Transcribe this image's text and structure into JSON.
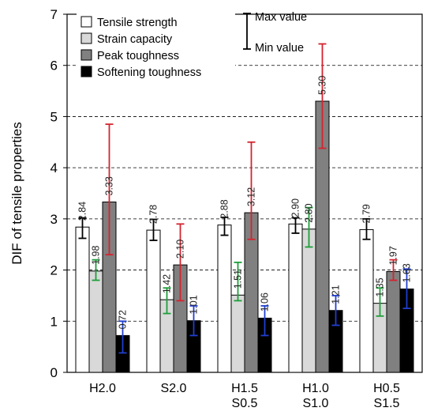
{
  "chart_data": {
    "type": "bar",
    "title": "",
    "xlabel": "",
    "ylabel": "DIF of tensile properties",
    "ylim": [
      0,
      7
    ],
    "yticks": [
      "0",
      "1",
      "2",
      "3",
      "4",
      "5",
      "6",
      "7"
    ],
    "grid": "dashed horizontal",
    "legend_position": "top-left",
    "categories": [
      [
        "H2.0"
      ],
      [
        "S2.0"
      ],
      [
        "H1.5",
        "S0.5"
      ],
      [
        "H1.0",
        "S1.0"
      ],
      [
        "H0.5",
        "S1.5"
      ]
    ],
    "series": [
      {
        "name": "Tensile strength",
        "fill": "#ffffff",
        "error_color": "#000000",
        "values": [
          2.84,
          2.78,
          2.88,
          2.9,
          2.79
        ],
        "labels": [
          "2.84",
          "2.78",
          "2.88",
          "2.90",
          "2.79"
        ],
        "err_min": [
          2.62,
          2.58,
          2.68,
          2.72,
          2.6
        ],
        "err_max": [
          3.02,
          2.99,
          3.03,
          3.02,
          3.0
        ]
      },
      {
        "name": "Strain capacity",
        "fill": "#d9d9d9",
        "error_color": "#1e9e3a",
        "values": [
          1.98,
          1.42,
          1.51,
          2.8,
          1.35
        ],
        "labels": [
          "1.98",
          "1.42",
          "1.51",
          "2.80",
          "1.35"
        ],
        "err_min": [
          1.8,
          1.15,
          1.4,
          2.45,
          1.1
        ],
        "err_max": [
          2.2,
          1.65,
          2.15,
          3.22,
          1.65
        ]
      },
      {
        "name": "Peak toughness",
        "fill": "#808080",
        "error_color": "#d4242f",
        "values": [
          3.33,
          2.1,
          3.12,
          5.3,
          1.97
        ],
        "labels": [
          "3.33",
          "2.10",
          "3.12",
          "5.30",
          "1.97"
        ],
        "err_min": [
          2.3,
          1.4,
          2.6,
          4.38,
          1.8
        ],
        "err_max": [
          4.85,
          2.9,
          4.5,
          6.42,
          2.2
        ]
      },
      {
        "name": "Softening toughness",
        "fill": "#000000",
        "error_color": "#1f3fcf",
        "values": [
          0.72,
          1.01,
          1.06,
          1.21,
          1.63
        ],
        "labels": [
          "0.72",
          "1.01",
          "1.06",
          "1.21",
          "1.63"
        ],
        "err_min": [
          0.38,
          0.72,
          0.72,
          0.92,
          1.25
        ],
        "err_max": [
          1.0,
          1.3,
          1.3,
          1.5,
          2.02
        ]
      }
    ],
    "range_legend": {
      "max_label": "Max value",
      "min_label": "Min value"
    }
  }
}
